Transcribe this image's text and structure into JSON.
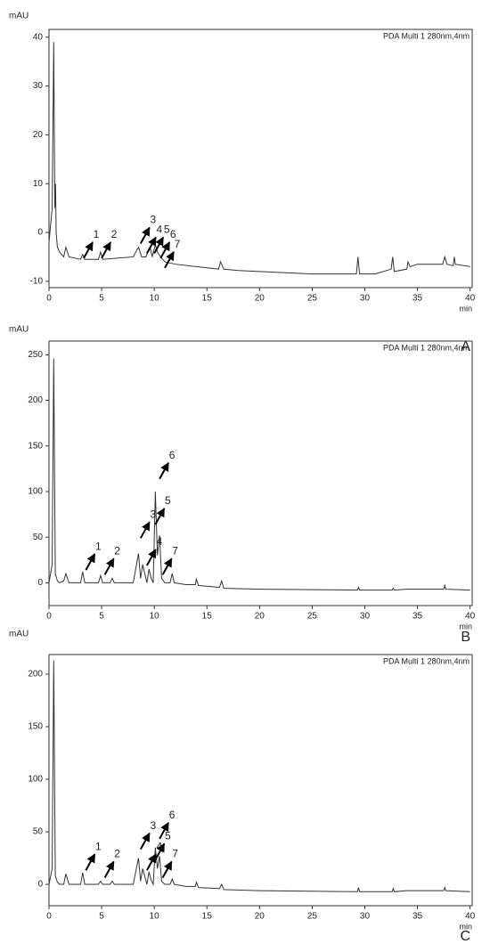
{
  "chart_data": [
    {
      "type": "line",
      "y_label": "mAU",
      "x_label": "min",
      "panel_label": "A",
      "xlim": [
        0,
        40.2
      ],
      "ylim": [
        -11.3,
        41.6
      ],
      "xticks": [
        0,
        5,
        10,
        15,
        20,
        25,
        30,
        35,
        40
      ],
      "yticks": [
        -10,
        0,
        10,
        20,
        30,
        40
      ],
      "annotations": [
        "1",
        "2",
        "3",
        "4",
        "5",
        "6",
        "7"
      ],
      "series": [
        {
          "name": "PDA Multi 1 280nm,4nm",
          "color": "#333333",
          "x": [
            0,
            0.3,
            0.45,
            0.55,
            0.62,
            0.68,
            0.8,
            1.0,
            1.4,
            1.6,
            1.9,
            3,
            3.2,
            3.4,
            4.7,
            4.9,
            5.1,
            8,
            8.5,
            8.8,
            9.2,
            9.6,
            9.8,
            10.1,
            10.3,
            10.6,
            11,
            12,
            14,
            16.1,
            16.3,
            16.6,
            18,
            20,
            25,
            29.2,
            29.35,
            29.5,
            31,
            32.5,
            32.65,
            32.8,
            34,
            34.1,
            34.3,
            35,
            37.4,
            37.6,
            37.8,
            38.4,
            38.5,
            38.6,
            40
          ],
          "values": [
            -2,
            5,
            39,
            5,
            10,
            0,
            -3,
            -4,
            -5,
            -3,
            -5,
            -5.5,
            -4.5,
            -5.5,
            -5.5,
            -4,
            -5.5,
            -5,
            -3,
            -5,
            -5,
            -3,
            -5,
            -2.5,
            -4,
            -5,
            -6,
            -6.5,
            -7,
            -7.5,
            -6,
            -7.5,
            -7.8,
            -8,
            -8.5,
            -8.5,
            -5,
            -8.5,
            -8.5,
            -7.5,
            -5,
            -8,
            -7.5,
            -6,
            -7,
            -6.5,
            -6.5,
            -5,
            -6.5,
            -6.8,
            -5,
            -6.5,
            -7
          ]
        }
      ]
    },
    {
      "type": "line",
      "y_label": "mAU",
      "x_label": "min",
      "panel_label": "B",
      "xlim": [
        0,
        40.2
      ],
      "ylim": [
        -25,
        265
      ],
      "xticks": [
        0,
        5,
        10,
        15,
        20,
        25,
        30,
        35,
        40
      ],
      "yticks": [
        0,
        50,
        100,
        150,
        200,
        250
      ],
      "annotations": [
        "1",
        "2",
        "3",
        "4",
        "5",
        "6",
        "7"
      ],
      "series": [
        {
          "name": "PDA Multi 1 280nm,4nm",
          "color": "#333333",
          "x": [
            0,
            0.3,
            0.45,
            0.6,
            0.8,
            1.0,
            1.4,
            1.6,
            1.9,
            3,
            3.2,
            3.4,
            4.7,
            4.9,
            5.1,
            5.8,
            6,
            6.2,
            8,
            8.5,
            8.7,
            8.9,
            9.3,
            9.5,
            9.7,
            9.9,
            10.1,
            10.3,
            10.5,
            10.7,
            11,
            11.5,
            11.7,
            11.9,
            13,
            13.9,
            14,
            14.2,
            16.2,
            16.4,
            16.6,
            20,
            25,
            29.3,
            29.4,
            29.5,
            32.6,
            32.7,
            32.8,
            34,
            37.5,
            37.6,
            37.7,
            40
          ],
          "values": [
            0,
            20,
            246,
            10,
            2,
            0,
            2,
            10,
            0,
            0,
            12,
            0,
            0,
            8,
            0,
            0,
            5,
            0,
            0,
            32,
            5,
            20,
            0,
            15,
            5,
            0,
            100,
            30,
            52,
            5,
            0,
            0,
            10,
            0,
            -2,
            -2,
            4,
            -3,
            -5,
            2,
            -6,
            -7,
            -7.5,
            -8,
            -5,
            -8,
            -8,
            -6,
            -8,
            -7,
            -7,
            -3,
            -7,
            -8
          ]
        }
      ]
    },
    {
      "type": "line",
      "y_label": "mAU",
      "x_label": "min",
      "panel_label": "C",
      "xlim": [
        0,
        40.2
      ],
      "ylim": [
        -20.3,
        218.6
      ],
      "xticks": [
        0,
        5,
        10,
        15,
        20,
        25,
        30,
        35,
        40
      ],
      "yticks": [
        0,
        50,
        100,
        150,
        200
      ],
      "annotations": [
        "1",
        "2",
        "3",
        "4",
        "5",
        "6",
        "7"
      ],
      "series": [
        {
          "name": "PDA Multi 1 280nm,4nm",
          "color": "#333333",
          "x": [
            0,
            0.3,
            0.45,
            0.6,
            0.8,
            1.0,
            1.4,
            1.6,
            1.9,
            3,
            3.2,
            3.4,
            4.7,
            4.9,
            5.1,
            5.8,
            6,
            6.2,
            8,
            8.5,
            8.7,
            8.9,
            9.3,
            9.5,
            9.7,
            9.9,
            10.1,
            10.3,
            10.5,
            10.7,
            11,
            11.5,
            11.7,
            11.9,
            13,
            13.9,
            14,
            14.2,
            16.2,
            16.4,
            16.6,
            20,
            25,
            29.3,
            29.4,
            29.5,
            32.6,
            32.7,
            32.8,
            34,
            37.5,
            37.6,
            37.7,
            40
          ],
          "values": [
            0,
            15,
            213,
            8,
            2,
            0,
            0,
            10,
            0,
            0,
            11,
            0,
            0,
            3,
            0,
            0,
            3,
            0,
            0,
            25,
            3,
            15,
            0,
            12,
            4,
            0,
            35,
            15,
            27,
            3,
            0,
            0,
            5,
            0,
            -2,
            -2,
            2,
            -3,
            -4,
            0,
            -5,
            -6,
            -6.5,
            -7,
            -3,
            -7,
            -7,
            -4,
            -7,
            -6,
            -6,
            -3,
            -6,
            -7
          ]
        }
      ]
    }
  ]
}
